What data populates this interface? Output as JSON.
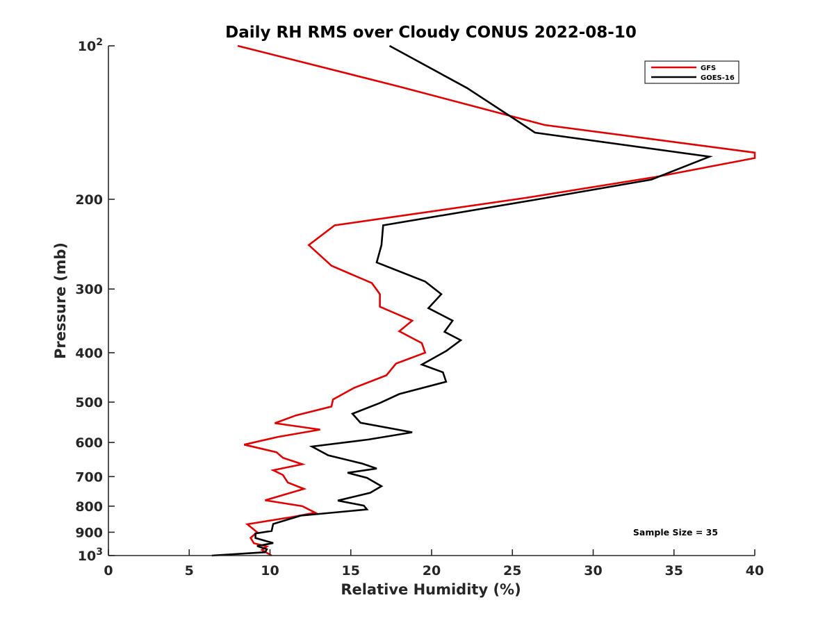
{
  "chart_data": {
    "type": "line",
    "title": "Daily RH RMS over Cloudy CONUS 2022-08-10",
    "xlabel": "Relative Humidity (%)",
    "ylabel": "Pressure (mb)",
    "xlim": [
      0,
      40
    ],
    "ylim": [
      100,
      1000
    ],
    "y_scale": "log",
    "y_reversed": true,
    "x_ticks": [
      "0",
      "5",
      "10",
      "15",
      "20",
      "25",
      "30",
      "35",
      "40"
    ],
    "y_ticks": [
      {
        "value": 100,
        "base": "10",
        "exp": "2"
      },
      {
        "value": 200,
        "label": "200"
      },
      {
        "value": 300,
        "label": "300"
      },
      {
        "value": 400,
        "label": "400"
      },
      {
        "value": 500,
        "label": "500"
      },
      {
        "value": 600,
        "label": "600"
      },
      {
        "value": 700,
        "label": "700"
      },
      {
        "value": 800,
        "label": "800"
      },
      {
        "value": 900,
        "label": "900"
      },
      {
        "value": 1000,
        "base": "10",
        "exp": "3"
      }
    ],
    "legend_position": "top-right",
    "annotation": "Sample Size = 35",
    "series": [
      {
        "name": "GFS",
        "color": "#e00000",
        "points": [
          {
            "x": 8.0,
            "y": 100
          },
          {
            "x": 17.9,
            "y": 120
          },
          {
            "x": 27.0,
            "y": 143
          },
          {
            "x": 40.0,
            "y": 162
          },
          {
            "x": 40.0,
            "y": 166
          },
          {
            "x": 33.8,
            "y": 181
          },
          {
            "x": 25.7,
            "y": 199
          },
          {
            "x": 14.0,
            "y": 225
          },
          {
            "x": 12.4,
            "y": 246
          },
          {
            "x": 13.8,
            "y": 270
          },
          {
            "x": 16.3,
            "y": 292
          },
          {
            "x": 16.8,
            "y": 307
          },
          {
            "x": 16.8,
            "y": 325
          },
          {
            "x": 18.8,
            "y": 346
          },
          {
            "x": 18.0,
            "y": 363
          },
          {
            "x": 19.4,
            "y": 383
          },
          {
            "x": 19.6,
            "y": 400
          },
          {
            "x": 17.8,
            "y": 420
          },
          {
            "x": 17.2,
            "y": 443
          },
          {
            "x": 15.2,
            "y": 469
          },
          {
            "x": 13.9,
            "y": 494
          },
          {
            "x": 13.8,
            "y": 510
          },
          {
            "x": 11.6,
            "y": 531
          },
          {
            "x": 10.3,
            "y": 550
          },
          {
            "x": 13.1,
            "y": 566
          },
          {
            "x": 10.5,
            "y": 585
          },
          {
            "x": 8.4,
            "y": 606
          },
          {
            "x": 10.4,
            "y": 627
          },
          {
            "x": 10.8,
            "y": 643
          },
          {
            "x": 12.0,
            "y": 662
          },
          {
            "x": 10.2,
            "y": 680
          },
          {
            "x": 10.8,
            "y": 695
          },
          {
            "x": 11.1,
            "y": 719
          },
          {
            "x": 12.1,
            "y": 740
          },
          {
            "x": 10.6,
            "y": 764
          },
          {
            "x": 9.7,
            "y": 779
          },
          {
            "x": 12.0,
            "y": 800
          },
          {
            "x": 12.8,
            "y": 824
          },
          {
            "x": 11.4,
            "y": 840
          },
          {
            "x": 8.6,
            "y": 868
          },
          {
            "x": 9.2,
            "y": 900
          },
          {
            "x": 8.8,
            "y": 923
          },
          {
            "x": 9.0,
            "y": 946
          },
          {
            "x": 9.8,
            "y": 960
          },
          {
            "x": 9.5,
            "y": 975
          },
          {
            "x": 10.1,
            "y": 1000
          }
        ]
      },
      {
        "name": "GOES-16",
        "color": "#000000",
        "points": [
          {
            "x": 17.4,
            "y": 100
          },
          {
            "x": 22.2,
            "y": 121
          },
          {
            "x": 25.4,
            "y": 141
          },
          {
            "x": 26.4,
            "y": 148
          },
          {
            "x": 37.2,
            "y": 165
          },
          {
            "x": 33.6,
            "y": 183
          },
          {
            "x": 26.2,
            "y": 201
          },
          {
            "x": 17.0,
            "y": 225
          },
          {
            "x": 16.9,
            "y": 246
          },
          {
            "x": 16.6,
            "y": 266
          },
          {
            "x": 19.6,
            "y": 290
          },
          {
            "x": 20.6,
            "y": 307
          },
          {
            "x": 19.8,
            "y": 327
          },
          {
            "x": 21.3,
            "y": 346
          },
          {
            "x": 20.8,
            "y": 364
          },
          {
            "x": 21.8,
            "y": 378
          },
          {
            "x": 20.9,
            "y": 397
          },
          {
            "x": 19.4,
            "y": 422
          },
          {
            "x": 20.7,
            "y": 437
          },
          {
            "x": 20.9,
            "y": 456
          },
          {
            "x": 18.0,
            "y": 482
          },
          {
            "x": 16.8,
            "y": 502
          },
          {
            "x": 15.1,
            "y": 527
          },
          {
            "x": 15.6,
            "y": 549
          },
          {
            "x": 18.8,
            "y": 573
          },
          {
            "x": 16.1,
            "y": 592
          },
          {
            "x": 12.6,
            "y": 611
          },
          {
            "x": 13.6,
            "y": 636
          },
          {
            "x": 15.7,
            "y": 660
          },
          {
            "x": 16.6,
            "y": 675
          },
          {
            "x": 14.8,
            "y": 688
          },
          {
            "x": 16.0,
            "y": 704
          },
          {
            "x": 16.9,
            "y": 731
          },
          {
            "x": 16.2,
            "y": 753
          },
          {
            "x": 14.2,
            "y": 780
          },
          {
            "x": 15.8,
            "y": 798
          },
          {
            "x": 16.0,
            "y": 812
          },
          {
            "x": 11.9,
            "y": 835
          },
          {
            "x": 10.2,
            "y": 867
          },
          {
            "x": 10.1,
            "y": 895
          },
          {
            "x": 9.1,
            "y": 905
          },
          {
            "x": 9.1,
            "y": 924
          },
          {
            "x": 10.2,
            "y": 945
          },
          {
            "x": 9.2,
            "y": 958
          },
          {
            "x": 9.8,
            "y": 972
          },
          {
            "x": 9.7,
            "y": 985
          },
          {
            "x": 6.4,
            "y": 1000
          }
        ]
      }
    ]
  }
}
